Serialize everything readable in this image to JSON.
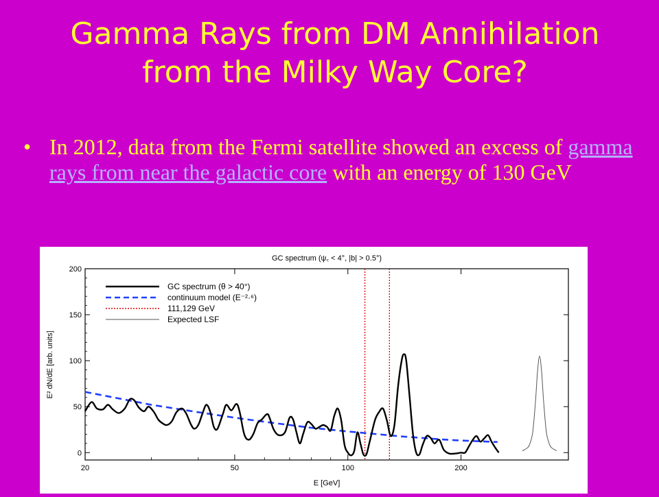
{
  "slide": {
    "title_line1": "Gamma Rays from DM Annihilation",
    "title_line2": "from the Milky Way Core?",
    "bullet_char": "•",
    "bullet_text_before": "In 2012, data from the Fermi satellite showed an excess of ",
    "bullet_link": "gamma rays from near the galactic core",
    "bullet_text_after": " with an energy of 130 GeV",
    "colors": {
      "background": "#CC00CC",
      "title": "#FFFF33",
      "link": "#B3B3FF"
    }
  },
  "chart_data": {
    "type": "line",
    "title": "GC spectrum (ψ꜀ < 4°, |b| > 0.5°)",
    "xlabel": "E [GeV]",
    "ylabel": "E² dN/dE [arb. units]",
    "xscale": "log",
    "xlim": [
      20,
      260
    ],
    "ylim": [
      -8,
      200
    ],
    "xticks": [
      {
        "v": 20,
        "label": "20"
      },
      {
        "v": 50,
        "label": "50"
      },
      {
        "v": 100,
        "label": "100"
      },
      {
        "v": 200,
        "label": "200"
      }
    ],
    "yticks": [
      0,
      50,
      100,
      150,
      200
    ],
    "legend_position": "top-left",
    "legend": [
      {
        "label": "GC spectrum (θ > 40°)",
        "color": "#000000",
        "style": "solid"
      },
      {
        "label": "continuum model (E⁻²·⁶)",
        "color": "#1f3fff",
        "style": "dashed"
      },
      {
        "label": "111,129 GeV",
        "color": "#e00000",
        "style": "dotted"
      },
      {
        "label": "Expected LSF",
        "color": "#555555",
        "style": "thin"
      }
    ],
    "series": [
      {
        "name": "GC spectrum (θ > 40°)",
        "color": "#000000",
        "points": [
          [
            20,
            45
          ],
          [
            20.8,
            55
          ],
          [
            21.5,
            48
          ],
          [
            22.3,
            47
          ],
          [
            23,
            52
          ],
          [
            23.7,
            47
          ],
          [
            24.6,
            43
          ],
          [
            25.5,
            48
          ],
          [
            26.3,
            58
          ],
          [
            27,
            57
          ],
          [
            27.8,
            49
          ],
          [
            28.7,
            45
          ],
          [
            29.5,
            50
          ],
          [
            30.5,
            44
          ],
          [
            31.3,
            36
          ],
          [
            32.1,
            32
          ],
          [
            33,
            30
          ],
          [
            34,
            34
          ],
          [
            35,
            44
          ],
          [
            36.2,
            48
          ],
          [
            37.2,
            42
          ],
          [
            38.2,
            31
          ],
          [
            39,
            26
          ],
          [
            40,
            30
          ],
          [
            41,
            42
          ],
          [
            42,
            52
          ],
          [
            43,
            45
          ],
          [
            44,
            28
          ],
          [
            45,
            26
          ],
          [
            46.5,
            42
          ],
          [
            47.5,
            52
          ],
          [
            49,
            46
          ],
          [
            50.5,
            53
          ],
          [
            51.5,
            45
          ],
          [
            53,
            20
          ],
          [
            54.5,
            14
          ],
          [
            56,
            20
          ],
          [
            57.5,
            32
          ],
          [
            59,
            36
          ],
          [
            61,
            42
          ],
          [
            62,
            37
          ],
          [
            63.5,
            25
          ],
          [
            65.5,
            19
          ],
          [
            68,
            22
          ],
          [
            70,
            38
          ],
          [
            71.5,
            36
          ],
          [
            73,
            22
          ],
          [
            74.5,
            10
          ],
          [
            76,
            20
          ],
          [
            78,
            33
          ],
          [
            80,
            31
          ],
          [
            82,
            26
          ],
          [
            84,
            28
          ],
          [
            86,
            30
          ],
          [
            88,
            28
          ],
          [
            90,
            24
          ],
          [
            92,
            40
          ],
          [
            94,
            48
          ],
          [
            96,
            35
          ],
          [
            98,
            8
          ],
          [
            100,
            0
          ],
          [
            102,
            -3
          ],
          [
            104,
            2
          ],
          [
            106,
            22
          ],
          [
            108,
            10
          ],
          [
            110,
            -2
          ],
          [
            112,
            -2
          ],
          [
            114,
            10
          ],
          [
            118,
            35
          ],
          [
            121,
            44
          ],
          [
            124,
            48
          ],
          [
            127,
            35
          ],
          [
            130,
            18
          ],
          [
            133,
            30
          ],
          [
            136,
            72
          ],
          [
            139,
            100
          ],
          [
            141,
            107
          ],
          [
            143,
            100
          ],
          [
            146,
            60
          ],
          [
            149,
            20
          ],
          [
            152,
            0
          ],
          [
            155,
            -2
          ],
          [
            158,
            8
          ],
          [
            162,
            18
          ],
          [
            166,
            16
          ],
          [
            170,
            10
          ],
          [
            175,
            14
          ],
          [
            180,
            3
          ],
          [
            186,
            -1
          ],
          [
            193,
            -1
          ],
          [
            200,
            0
          ],
          [
            205,
            0
          ],
          [
            210,
            7
          ],
          [
            215,
            14
          ],
          [
            220,
            18
          ],
          [
            225,
            12
          ],
          [
            230,
            15
          ],
          [
            236,
            19
          ],
          [
            241,
            12
          ],
          [
            247,
            5
          ],
          [
            252,
            0
          ]
        ]
      },
      {
        "name": "continuum model (E⁻²·⁶)",
        "color": "#1f3fff",
        "points": [
          [
            20,
            66
          ],
          [
            30,
            52
          ],
          [
            40,
            44
          ],
          [
            50,
            38
          ],
          [
            60,
            33.5
          ],
          [
            80,
            27
          ],
          [
            100,
            23
          ],
          [
            120,
            20
          ],
          [
            140,
            17.5
          ],
          [
            160,
            15.8
          ],
          [
            180,
            14.2
          ],
          [
            200,
            13.2
          ],
          [
            220,
            12.4
          ],
          [
            250,
            11.5
          ]
        ]
      },
      {
        "name": "111,129 GeV",
        "color": "#e00000",
        "vlines": [
          111,
          129
        ]
      }
    ],
    "lsf": {
      "name": "Expected LSF",
      "color": "#555555",
      "points": [
        [
          -25,
          2
        ],
        [
          -20,
          4
        ],
        [
          -15,
          8
        ],
        [
          -10,
          22
        ],
        [
          -6,
          55
        ],
        [
          -3,
          88
        ],
        [
          0,
          105
        ],
        [
          3,
          88
        ],
        [
          6,
          55
        ],
        [
          10,
          22
        ],
        [
          15,
          8
        ],
        [
          20,
          4
        ],
        [
          25,
          2
        ]
      ]
    }
  }
}
